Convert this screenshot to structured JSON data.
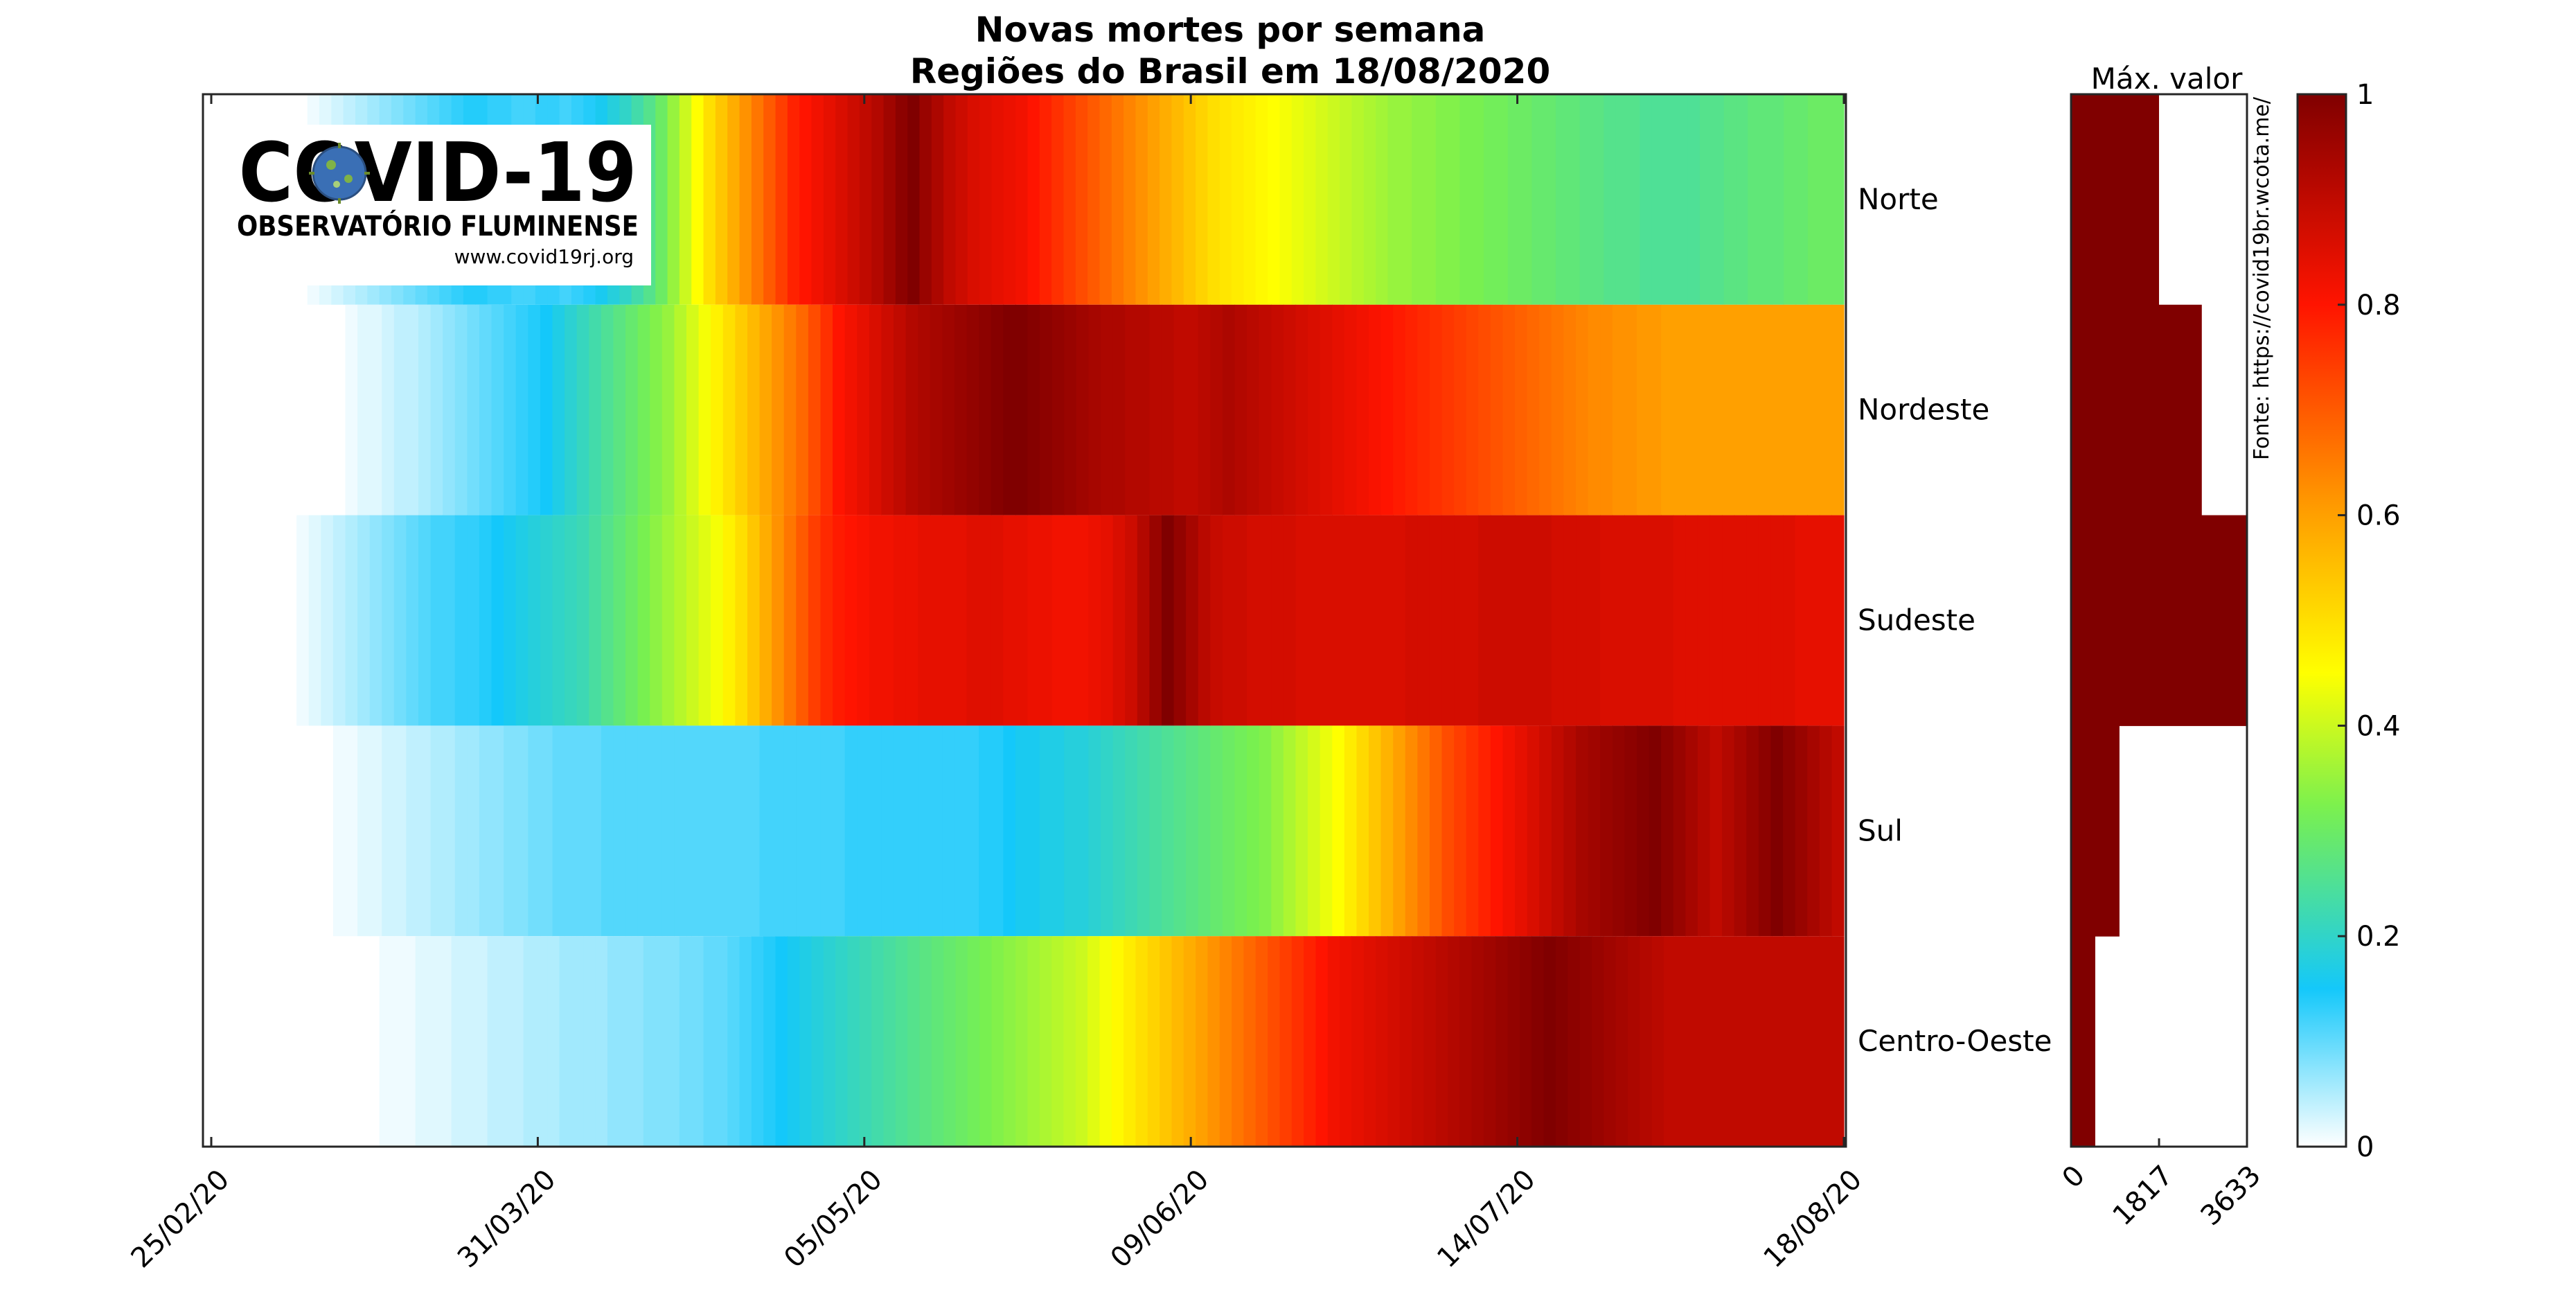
{
  "chart_data": {
    "type": "heatmap",
    "title": "Novas mortes por semana",
    "subtitle": "Regiões do Brasil em 18/08/2020",
    "x_tick_labels": [
      "25/02/20",
      "31/03/20",
      "05/05/20",
      "09/06/20",
      "14/07/20",
      "18/08/20"
    ],
    "x_tick_weeks": [
      0,
      5,
      10,
      15,
      20,
      25
    ],
    "num_weeks": 25,
    "regions": [
      {
        "name": "Norte",
        "max_value": 1817,
        "values": [
          0,
          0,
          0,
          0,
          0,
          0,
          0,
          0,
          0.01,
          0.02,
          0.03,
          0.04,
          0.05,
          0.06,
          0.07,
          0.08,
          0.09,
          0.1,
          0.11,
          0.12,
          0.13,
          0.14,
          0.14,
          0.13,
          0.13,
          0.12,
          0.12,
          0.13,
          0.13,
          0.12,
          0.13,
          0.14,
          0.16,
          0.18,
          0.2,
          0.23,
          0.26,
          0.3,
          0.35,
          0.4,
          0.45,
          0.5,
          0.54,
          0.58,
          0.62,
          0.66,
          0.7,
          0.74,
          0.78,
          0.8,
          0.82,
          0.84,
          0.86,
          0.88,
          0.9,
          0.92,
          0.95,
          0.98,
          1,
          0.96,
          0.93,
          0.9,
          0.88,
          0.86,
          0.85,
          0.84,
          0.83,
          0.82,
          0.8,
          0.78,
          0.76,
          0.74,
          0.72,
          0.7,
          0.68,
          0.66,
          0.64,
          0.62,
          0.6,
          0.58,
          0.56,
          0.54,
          0.52,
          0.5,
          0.49,
          0.48,
          0.47,
          0.46,
          0.45,
          0.44,
          0.43,
          0.42,
          0.41,
          0.4,
          0.39,
          0.38,
          0.37,
          0.36,
          0.35,
          0.35,
          0.34,
          0.34,
          0.33,
          0.33,
          0.32,
          0.32,
          0.31,
          0.31,
          0.3,
          0.3,
          0.29,
          0.29,
          0.28,
          0.28,
          0.27,
          0.27,
          0.26,
          0.26,
          0.26,
          0.25,
          0.25,
          0.25,
          0.25,
          0.25,
          0.26,
          0.26,
          0.27,
          0.27,
          0.28,
          0.28,
          0.28,
          0.29,
          0.29,
          0.3,
          0.3,
          0.3
        ]
      },
      {
        "name": "Nordeste",
        "max_value": 2700,
        "values": [
          0,
          0,
          0,
          0,
          0,
          0,
          0,
          0,
          0,
          0,
          0,
          0.01,
          0.02,
          0.02,
          0.03,
          0.04,
          0.04,
          0.05,
          0.06,
          0.07,
          0.08,
          0.09,
          0.1,
          0.11,
          0.12,
          0.13,
          0.14,
          0.15,
          0.17,
          0.19,
          0.21,
          0.23,
          0.25,
          0.27,
          0.29,
          0.31,
          0.33,
          0.35,
          0.38,
          0.41,
          0.44,
          0.47,
          0.5,
          0.53,
          0.56,
          0.59,
          0.62,
          0.65,
          0.68,
          0.72,
          0.76,
          0.8,
          0.82,
          0.84,
          0.86,
          0.88,
          0.9,
          0.92,
          0.93,
          0.94,
          0.95,
          0.96,
          0.97,
          0.98,
          0.99,
          1,
          1,
          0.99,
          0.98,
          0.97,
          0.96,
          0.95,
          0.94,
          0.93,
          0.93,
          0.92,
          0.92,
          0.91,
          0.91,
          0.9,
          0.9,
          0.91,
          0.92,
          0.93,
          0.92,
          0.91,
          0.9,
          0.89,
          0.88,
          0.87,
          0.86,
          0.85,
          0.84,
          0.83,
          0.82,
          0.81,
          0.8,
          0.79,
          0.78,
          0.77,
          0.76,
          0.75,
          0.74,
          0.73,
          0.72,
          0.71,
          0.7,
          0.69,
          0.68,
          0.67,
          0.66,
          0.65,
          0.64,
          0.63,
          0.63,
          0.62,
          0.62,
          0.61,
          0.61,
          0.6,
          0.6,
          0.6,
          0.6,
          0.6,
          0.6,
          0.6,
          0.6,
          0.6,
          0.6,
          0.6,
          0.6,
          0.6,
          0.6,
          0.6
        ]
      },
      {
        "name": "Sudeste",
        "max_value": 3633,
        "values": [
          0,
          0,
          0,
          0,
          0,
          0,
          0,
          0.01,
          0.02,
          0.03,
          0.04,
          0.05,
          0.06,
          0.07,
          0.08,
          0.09,
          0.1,
          0.11,
          0.12,
          0.12,
          0.13,
          0.13,
          0.14,
          0.15,
          0.16,
          0.17,
          0.18,
          0.19,
          0.2,
          0.21,
          0.22,
          0.24,
          0.26,
          0.28,
          0.3,
          0.32,
          0.34,
          0.36,
          0.38,
          0.4,
          0.42,
          0.44,
          0.47,
          0.5,
          0.54,
          0.58,
          0.62,
          0.66,
          0.7,
          0.74,
          0.77,
          0.79,
          0.8,
          0.81,
          0.82,
          0.82,
          0.83,
          0.83,
          0.84,
          0.84,
          0.84,
          0.84,
          0.85,
          0.85,
          0.85,
          0.84,
          0.84,
          0.83,
          0.83,
          0.82,
          0.82,
          0.82,
          0.83,
          0.84,
          0.86,
          0.88,
          0.92,
          0.96,
          1,
          0.97,
          0.94,
          0.91,
          0.89,
          0.88,
          0.88,
          0.87,
          0.87,
          0.87,
          0.87,
          0.86,
          0.86,
          0.86,
          0.86,
          0.86,
          0.86,
          0.86,
          0.86,
          0.86,
          0.87,
          0.87,
          0.87,
          0.87,
          0.87,
          0.87,
          0.88,
          0.88,
          0.88,
          0.88,
          0.88,
          0.88,
          0.87,
          0.87,
          0.87,
          0.87,
          0.86,
          0.86,
          0.86,
          0.86,
          0.86,
          0.86,
          0.85,
          0.85,
          0.85,
          0.85,
          0.85,
          0.85,
          0.85,
          0.85,
          0.85,
          0.85,
          0.84,
          0.84,
          0.84,
          0.84
        ]
      },
      {
        "name": "Sul",
        "max_value": 1000,
        "values": [
          0,
          0,
          0,
          0,
          0,
          0,
          0,
          0,
          0,
          0,
          0.01,
          0.01,
          0.02,
          0.02,
          0.03,
          0.03,
          0.04,
          0.04,
          0.05,
          0.05,
          0.06,
          0.06,
          0.07,
          0.07,
          0.08,
          0.08,
          0.09,
          0.09,
          0.1,
          0.1,
          0.1,
          0.1,
          0.11,
          0.11,
          0.11,
          0.11,
          0.11,
          0.11,
          0.11,
          0.11,
          0.11,
          0.11,
          0.11,
          0.11,
          0.11,
          0.12,
          0.12,
          0.12,
          0.12,
          0.12,
          0.12,
          0.12,
          0.13,
          0.13,
          0.13,
          0.13,
          0.13,
          0.13,
          0.13,
          0.13,
          0.13,
          0.13,
          0.13,
          0.14,
          0.14,
          0.15,
          0.16,
          0.16,
          0.17,
          0.17,
          0.18,
          0.18,
          0.19,
          0.2,
          0.21,
          0.22,
          0.23,
          0.24,
          0.25,
          0.26,
          0.27,
          0.28,
          0.29,
          0.3,
          0.31,
          0.32,
          0.33,
          0.35,
          0.37,
          0.39,
          0.41,
          0.43,
          0.45,
          0.48,
          0.51,
          0.54,
          0.57,
          0.6,
          0.63,
          0.66,
          0.69,
          0.72,
          0.74,
          0.76,
          0.78,
          0.8,
          0.82,
          0.84,
          0.86,
          0.88,
          0.9,
          0.92,
          0.94,
          0.95,
          0.96,
          0.97,
          0.98,
          0.99,
          1,
          0.98,
          0.96,
          0.94,
          0.92,
          0.9,
          0.92,
          0.94,
          0.96,
          0.98,
          1,
          0.98,
          0.96,
          0.94,
          0.92,
          0.9
        ]
      },
      {
        "name": "Centro-Oeste",
        "max_value": 500,
        "values": [
          0,
          0,
          0,
          0,
          0,
          0,
          0,
          0,
          0,
          0,
          0,
          0,
          0,
          0,
          0.01,
          0.01,
          0.01,
          0.02,
          0.02,
          0.02,
          0.03,
          0.03,
          0.03,
          0.04,
          0.04,
          0.04,
          0.05,
          0.05,
          0.05,
          0.06,
          0.06,
          0.06,
          0.06,
          0.07,
          0.07,
          0.07,
          0.08,
          0.08,
          0.08,
          0.09,
          0.09,
          0.1,
          0.1,
          0.11,
          0.12,
          0.13,
          0.14,
          0.15,
          0.16,
          0.17,
          0.18,
          0.19,
          0.2,
          0.21,
          0.22,
          0.23,
          0.24,
          0.25,
          0.26,
          0.27,
          0.28,
          0.29,
          0.3,
          0.31,
          0.32,
          0.33,
          0.34,
          0.35,
          0.36,
          0.37,
          0.38,
          0.39,
          0.4,
          0.42,
          0.44,
          0.46,
          0.48,
          0.5,
          0.52,
          0.54,
          0.56,
          0.58,
          0.6,
          0.62,
          0.64,
          0.66,
          0.68,
          0.7,
          0.72,
          0.74,
          0.76,
          0.78,
          0.8,
          0.82,
          0.83,
          0.84,
          0.85,
          0.86,
          0.87,
          0.88,
          0.89,
          0.9,
          0.91,
          0.92,
          0.93,
          0.94,
          0.95,
          0.96,
          0.97,
          0.98,
          0.99,
          1,
          0.99,
          0.98,
          0.97,
          0.96,
          0.95,
          0.94,
          0.93,
          0.92,
          0.91,
          0.9,
          0.9,
          0.9,
          0.9,
          0.9,
          0.9,
          0.9,
          0.9,
          0.9,
          0.9,
          0.9,
          0.9,
          0.9,
          0.9,
          0.9
        ]
      }
    ],
    "max_panel": {
      "title": "Máx. valor",
      "tick_labels": [
        "0",
        "1817",
        "3633"
      ],
      "tick_values": [
        0,
        1817,
        3633
      ],
      "xlim": [
        0,
        3633
      ],
      "bar_color": "#800000"
    },
    "colorbar": {
      "tick_labels": [
        "0",
        "0.2",
        "0.4",
        "0.6",
        "0.8",
        "1"
      ],
      "tick_values": [
        0,
        0.2,
        0.4,
        0.6,
        0.8,
        1
      ],
      "range": [
        0,
        1
      ]
    },
    "source_text": "Fonte: https://covid19br.wcota.me/"
  },
  "logo": {
    "title": "COVID-19",
    "subtitle": "OBSERVATÓRIO FLUMINENSE",
    "url": "www.covid19rj.org",
    "title_color": "#2e5f9e",
    "subtitle_color": "#6a8a2a"
  }
}
